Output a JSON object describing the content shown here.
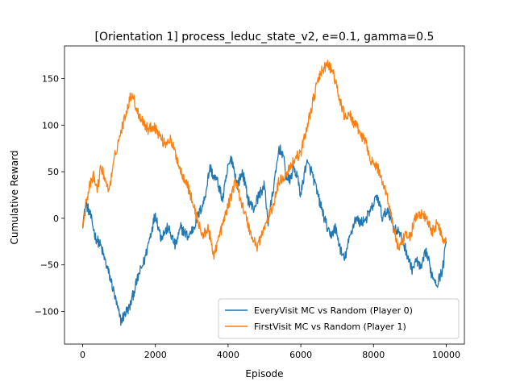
{
  "chart_data": {
    "type": "line",
    "title": "[Orientation 1] process_leduc_state_v2, e=0.1, gamma=0.5",
    "xlabel": "Episode",
    "ylabel": "Cumulative Reward",
    "xlim": [
      -500,
      10500
    ],
    "ylim": [
      -135,
      185
    ],
    "xticks": [
      0,
      2000,
      4000,
      6000,
      8000,
      10000
    ],
    "yticks": [
      -100,
      -50,
      0,
      50,
      100,
      150
    ],
    "grid": false,
    "legend_position": "lower-right",
    "noise_amplitude": 6,
    "series": [
      {
        "name": "EveryVisit MC vs Random (Player 0)",
        "color": "#1f77b4",
        "x": [
          0,
          100,
          200,
          350,
          500,
          650,
          800,
          950,
          1050,
          1200,
          1300,
          1400,
          1550,
          1700,
          1850,
          2000,
          2150,
          2350,
          2550,
          2700,
          2900,
          3050,
          3200,
          3350,
          3500,
          3600,
          3700,
          3850,
          4000,
          4100,
          4250,
          4400,
          4550,
          4700,
          4850,
          5000,
          5100,
          5200,
          5300,
          5400,
          5500,
          5600,
          5700,
          5800,
          5900,
          6000,
          6150,
          6300,
          6500,
          6650,
          6800,
          6950,
          7100,
          7200,
          7350,
          7500,
          7650,
          7800,
          7950,
          8100,
          8250,
          8400,
          8550,
          8700,
          8900,
          9050,
          9200,
          9300,
          9450,
          9600,
          9750,
          9900,
          10000
        ],
        "y": [
          -5,
          15,
          5,
          -20,
          -30,
          -50,
          -70,
          -95,
          -110,
          -100,
          -95,
          -80,
          -60,
          -45,
          -20,
          5,
          -20,
          -10,
          -30,
          -10,
          -20,
          -10,
          5,
          20,
          55,
          45,
          40,
          20,
          55,
          65,
          35,
          50,
          20,
          10,
          25,
          35,
          -5,
          20,
          45,
          75,
          70,
          45,
          40,
          55,
          45,
          25,
          60,
          50,
          20,
          0,
          -20,
          -10,
          -35,
          -45,
          -20,
          0,
          -5,
          0,
          10,
          25,
          0,
          10,
          -10,
          -15,
          -35,
          -55,
          -45,
          -55,
          -35,
          -60,
          -70,
          -55,
          -25
        ]
      },
      {
        "name": "FirstVisit MC vs Random (Player 1)",
        "color": "#ff7f0e",
        "x": [
          0,
          100,
          200,
          300,
          400,
          500,
          600,
          700,
          800,
          900,
          1000,
          1100,
          1200,
          1350,
          1500,
          1650,
          1800,
          1950,
          2100,
          2250,
          2400,
          2550,
          2700,
          2850,
          3000,
          3150,
          3300,
          3450,
          3600,
          3750,
          3900,
          4050,
          4200,
          4350,
          4500,
          4650,
          4800,
          4950,
          5100,
          5250,
          5400,
          5550,
          5700,
          5850,
          6000,
          6150,
          6300,
          6450,
          6600,
          6750,
          6900,
          7050,
          7200,
          7350,
          7500,
          7650,
          7800,
          7950,
          8100,
          8250,
          8400,
          8550,
          8700,
          8850,
          9000,
          9150,
          9300,
          9450,
          9600,
          9750,
          9900,
          10000
        ],
        "y": [
          -5,
          20,
          35,
          45,
          30,
          55,
          45,
          30,
          45,
          70,
          85,
          100,
          115,
          135,
          115,
          105,
          95,
          100,
          90,
          80,
          85,
          70,
          50,
          40,
          20,
          0,
          -20,
          -10,
          -40,
          -20,
          0,
          20,
          40,
          20,
          0,
          -20,
          -30,
          -15,
          0,
          15,
          40,
          45,
          55,
          65,
          70,
          95,
          120,
          145,
          160,
          165,
          155,
          130,
          110,
          110,
          100,
          90,
          80,
          60,
          55,
          40,
          20,
          -10,
          -35,
          -20,
          -20,
          0,
          5,
          0,
          -15,
          -5,
          -20,
          -25
        ]
      }
    ]
  }
}
